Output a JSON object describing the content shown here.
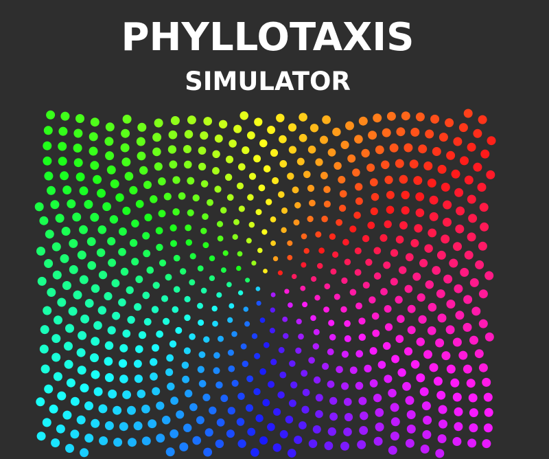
{
  "header": {
    "title": "PHYLLOTAXIS",
    "subtitle": "SIMULATOR"
  },
  "simulation": {
    "pattern": "phyllotaxis-spiral",
    "background_color": "#2e2e2e",
    "color_scheme": "hue-by-angle"
  }
}
